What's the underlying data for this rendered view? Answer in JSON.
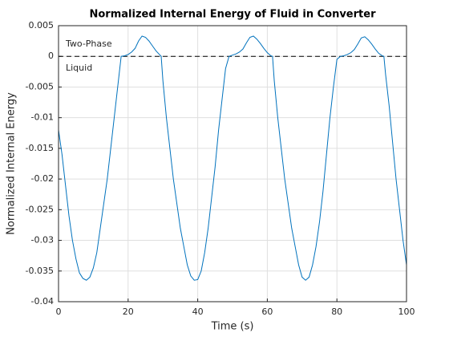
{
  "chart_data": {
    "type": "line",
    "title": "Normalized Internal Energy of Fluid in Converter",
    "xlabel": "Time (s)",
    "ylabel": "Normalized Internal Energy",
    "annotations": [
      "Two-Phase",
      "Liquid"
    ],
    "reference_line": {
      "value": 0,
      "style": "dashed",
      "color": "#000000"
    },
    "x": [
      0,
      1,
      2,
      3,
      4,
      5,
      6,
      7,
      8,
      9,
      10,
      11,
      12,
      13,
      14,
      15,
      16,
      17,
      18,
      19,
      20,
      21,
      22,
      23,
      24,
      25,
      26,
      27,
      28,
      29,
      29.5,
      30,
      31,
      32,
      33,
      34,
      35,
      36,
      37,
      38,
      39,
      40,
      41,
      42,
      43,
      44,
      45,
      46,
      47,
      48,
      49,
      50,
      51,
      52,
      53,
      54,
      55,
      56,
      57,
      58,
      59,
      60,
      61,
      61.5,
      62,
      63,
      64,
      65,
      66,
      67,
      68,
      69,
      70,
      71,
      72,
      73,
      74,
      75,
      76,
      77,
      78,
      79,
      80,
      81,
      82,
      83,
      84,
      85,
      86,
      87,
      88,
      89,
      90,
      91,
      92,
      93,
      93.5,
      94,
      95,
      96,
      97,
      98,
      99,
      100
    ],
    "series": [
      {
        "color": "#0072bd",
        "values": [
          -0.012,
          -0.016,
          -0.021,
          -0.026,
          -0.03,
          -0.033,
          -0.0353,
          -0.0362,
          -0.0365,
          -0.036,
          -0.0345,
          -0.032,
          -0.028,
          -0.024,
          -0.02,
          -0.015,
          -0.01,
          -0.005,
          0,
          0.0001,
          0.0003,
          0.0007,
          0.0013,
          0.0025,
          0.0033,
          0.0031,
          0.0025,
          0.0017,
          0.0009,
          0.0003,
          0,
          -0.004,
          -0.01,
          -0.015,
          -0.02,
          -0.024,
          -0.028,
          -0.031,
          -0.034,
          -0.0358,
          -0.0365,
          -0.0364,
          -0.035,
          -0.032,
          -0.028,
          -0.023,
          -0.018,
          -0.012,
          -0.007,
          -0.002,
          0,
          0.0002,
          0.0004,
          0.0007,
          0.0012,
          0.0022,
          0.0031,
          0.0033,
          0.0028,
          0.0021,
          0.0013,
          0.0006,
          0.0001,
          0,
          -0.004,
          -0.01,
          -0.015,
          -0.02,
          -0.024,
          -0.028,
          -0.031,
          -0.034,
          -0.036,
          -0.0365,
          -0.036,
          -0.034,
          -0.031,
          -0.027,
          -0.022,
          -0.016,
          -0.01,
          -0.005,
          -0.0005,
          0,
          0.0001,
          0.0003,
          0.0006,
          0.0011,
          0.002,
          0.003,
          0.0032,
          0.0027,
          0.002,
          0.0012,
          0.0005,
          0.0001,
          0,
          -0.003,
          -0.008,
          -0.014,
          -0.02,
          -0.025,
          -0.03,
          -0.034
        ]
      }
    ],
    "xlim": [
      0,
      100
    ],
    "xticks": [
      0,
      20,
      40,
      60,
      80,
      100
    ],
    "ylim": [
      -0.04,
      0.005
    ],
    "yticks": [
      0.005,
      0,
      -0.005,
      -0.01,
      -0.015,
      -0.02,
      -0.025,
      -0.03,
      -0.035,
      -0.04
    ],
    "grid": true
  }
}
